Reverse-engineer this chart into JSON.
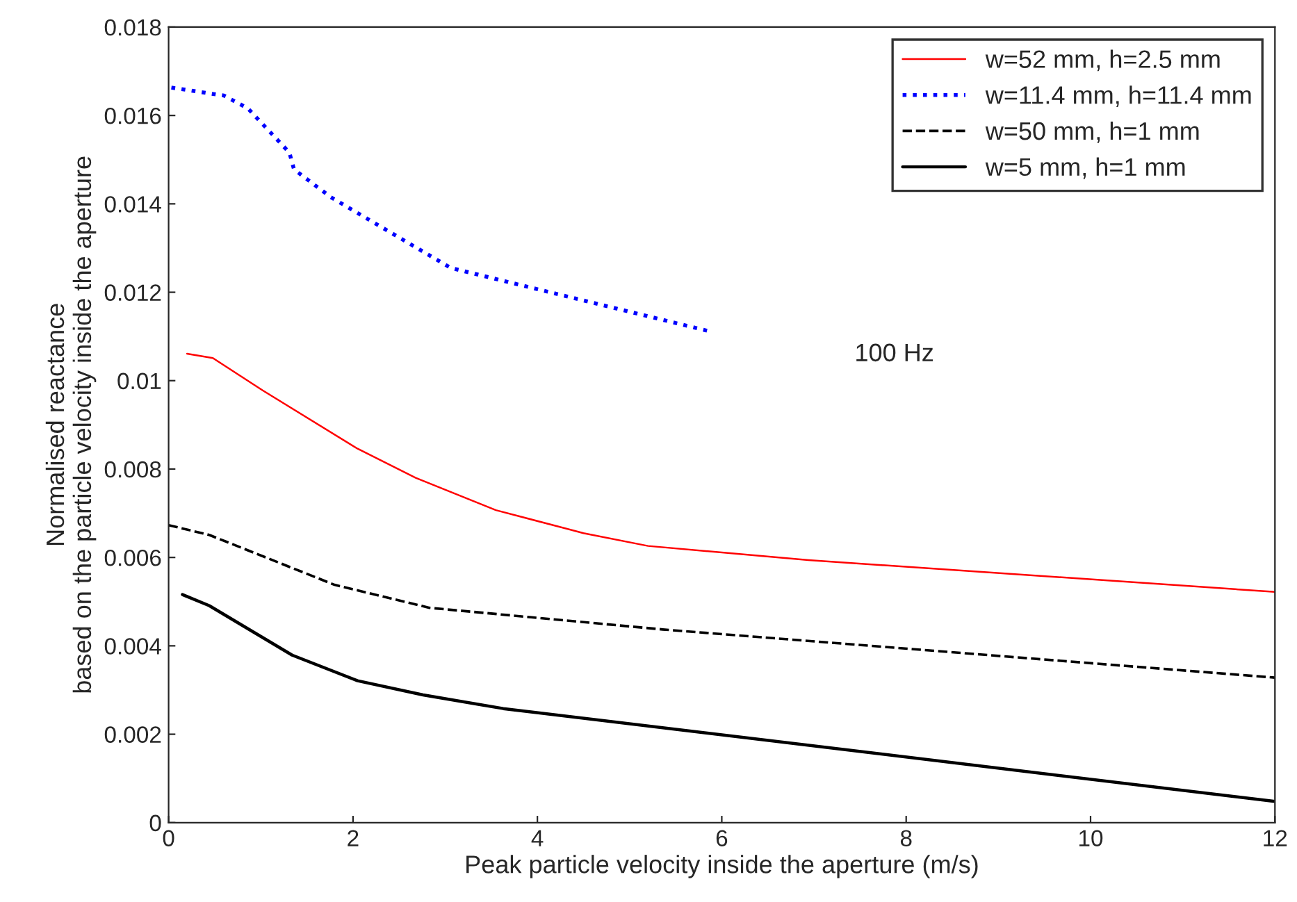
{
  "chart_data": {
    "type": "line",
    "xlabel": "Peak particle velocity inside the aperture (m/s)",
    "ylabel": "Normalised reactance\nbased on the particle velocity inside the aperture",
    "annotations": [
      "100 Hz"
    ],
    "xlim": [
      0,
      12
    ],
    "xticks": [
      0,
      2,
      4,
      6,
      8,
      10,
      12
    ],
    "ylim": [
      0,
      0.018
    ],
    "yticks": [
      0,
      0.002,
      0.004,
      0.006,
      0.008,
      {
        "value": 0.01,
        "label": "0.01"
      },
      0.012,
      0.014,
      0.016,
      0.018
    ],
    "grid": false,
    "legend": "top right",
    "marker": "none",
    "series": [
      {
        "name": "w=52 mm, h=2.5 mm",
        "color": "#ff0000",
        "line_style": "solid",
        "x": [
          0.2,
          0.48,
          1.02,
          2.05,
          2.68,
          3.55,
          4.5,
          5.2,
          6.94,
          12
        ],
        "values": [
          0.01061,
          0.01051,
          0.00978,
          0.00846,
          0.0078,
          0.00707,
          0.00655,
          0.00626,
          0.00594,
          0.00522
        ]
      },
      {
        "name": "w=11.4 mm, h=11.4 mm",
        "color": "#0000ff",
        "line_style": "dotted",
        "x": [
          0.03,
          0.6,
          0.86,
          1.31,
          1.36,
          1.76,
          3.06,
          5.84
        ],
        "values": [
          0.01663,
          0.01645,
          0.01616,
          0.01516,
          0.01478,
          0.01415,
          0.01255,
          0.01113
        ]
      },
      {
        "name": "w=50 mm, h=1 mm",
        "color": "#000000",
        "line_style": "dashed",
        "x": [
          0,
          0.44,
          1.8,
          2.83,
          5.36,
          12
        ],
        "values": [
          0.00673,
          0.00651,
          0.00538,
          0.00486,
          0.00437,
          0.00328
        ]
      },
      {
        "name": "w=5 mm, h=1 mm",
        "color": "#000000",
        "line_style": "solid",
        "x": [
          0.15,
          0.44,
          1.34,
          2.05,
          2.76,
          3.63,
          12
        ],
        "values": [
          0.00516,
          0.00491,
          0.00379,
          0.00321,
          0.00289,
          0.00258,
          0.00048
        ]
      }
    ]
  }
}
